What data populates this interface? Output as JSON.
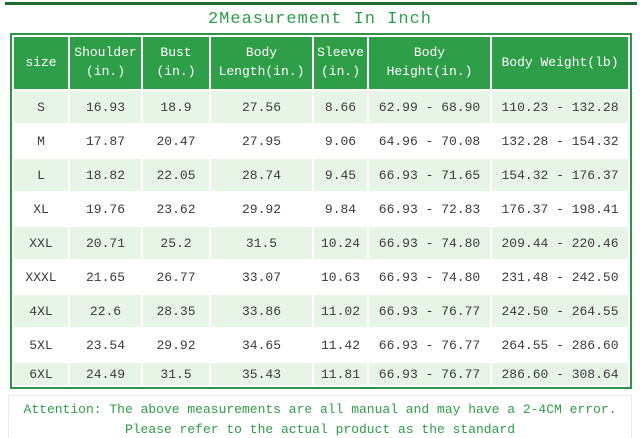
{
  "title": "2Measurement In Inch",
  "colors": {
    "accent_green": "#2f9e48",
    "border_green": "#2e9447",
    "top_line_green": "#1f6b2d",
    "row_alt_green": "#e7f5e7",
    "body_text": "#3a3a3a"
  },
  "table": {
    "columns": [
      "size",
      "Shoulder\n(in.)",
      "Bust\n(in.)",
      "Body\nLength(in.)",
      "Sleeve\n(in.)",
      "Body\nHeight(in.)",
      "Body Weight(lb)"
    ],
    "rows": [
      [
        "S",
        "16.93",
        "18.9",
        "27.56",
        "8.66",
        "62.99 - 68.90",
        "110.23 - 132.28"
      ],
      [
        "M",
        "17.87",
        "20.47",
        "27.95",
        "9.06",
        "64.96 - 70.08",
        "132.28 - 154.32"
      ],
      [
        "L",
        "18.82",
        "22.05",
        "28.74",
        "9.45",
        "66.93 - 71.65",
        "154.32 - 176.37"
      ],
      [
        "XL",
        "19.76",
        "23.62",
        "29.92",
        "9.84",
        "66.93 - 72.83",
        "176.37 - 198.41"
      ],
      [
        "XXL",
        "20.71",
        "25.2",
        "31.5",
        "10.24",
        "66.93 - 74.80",
        "209.44 - 220.46"
      ],
      [
        "XXXL",
        "21.65",
        "26.77",
        "33.07",
        "10.63",
        "66.93 - 74.80",
        "231.48 - 242.50"
      ],
      [
        "4XL",
        "22.6",
        "28.35",
        "33.86",
        "11.02",
        "66.93 - 76.77",
        "242.50 - 264.55"
      ],
      [
        "5XL",
        "23.54",
        "29.92",
        "34.65",
        "11.42",
        "66.93 - 76.77",
        "264.55 - 286.60"
      ],
      [
        "6XL",
        "24.49",
        "31.5",
        "35.43",
        "11.81",
        "66.93 - 76.77",
        "286.60 - 308.64"
      ]
    ]
  },
  "footer": {
    "line1": "Attention: The above measurements are all manual and may have a 2-4CM error.",
    "line2": "Please refer to the actual product as the standard"
  }
}
